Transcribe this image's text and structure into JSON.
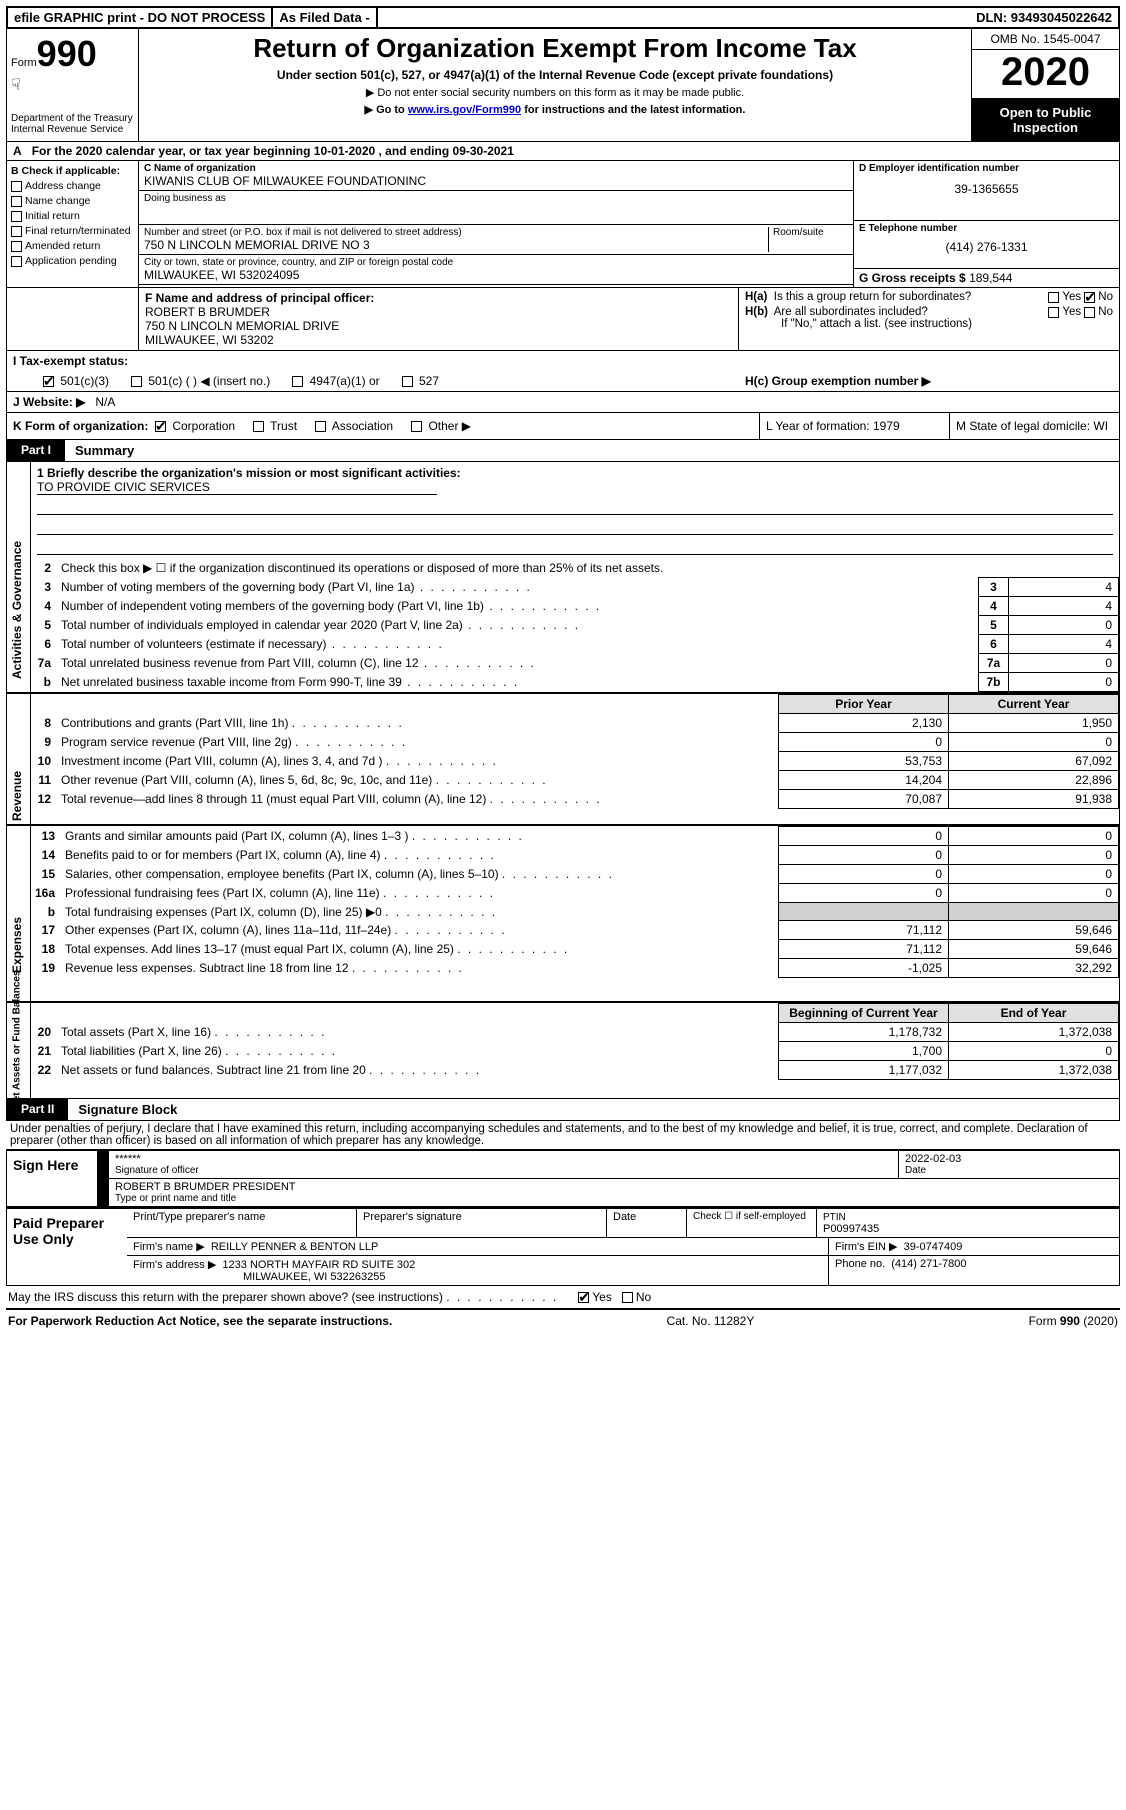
{
  "topbar": {
    "efile": "efile GRAPHIC print - DO NOT PROCESS",
    "asfiled": "As Filed Data -",
    "dln_label": "DLN:",
    "dln": "93493045022642"
  },
  "header": {
    "form_word": "Form",
    "form_no": "990",
    "dept": "Department of the Treasury\nInternal Revenue Service",
    "title": "Return of Organization Exempt From Income Tax",
    "sub": "Under section 501(c), 527, or 4947(a)(1) of the Internal Revenue Code (except private foundations)",
    "note1": "▶ Do not enter social security numbers on this form as it may be made public.",
    "note2_pre": "▶ Go to ",
    "note2_link": "www.irs.gov/Form990",
    "note2_post": " for instructions and the latest information.",
    "omb": "OMB No. 1545-0047",
    "year": "2020",
    "inspect": "Open to Public Inspection"
  },
  "rowA": {
    "label": "A",
    "text": "For the 2020 calendar year, or tax year beginning 10-01-2020   , and ending 09-30-2021"
  },
  "colB": {
    "hdr": "B Check if applicable:",
    "items": [
      "Address change",
      "Name change",
      "Initial return",
      "Final return/terminated",
      "Amended return",
      "Application pending"
    ]
  },
  "colC": {
    "c_label": "C Name of organization",
    "c_name": "KIWANIS CLUB OF MILWAUKEE FOUNDATIONINC",
    "dba_label": "Doing business as",
    "addr_label": "Number and street (or P.O. box if mail is not delivered to street address)",
    "room_label": "Room/suite",
    "addr": "750 N LINCOLN MEMORIAL DRIVE NO 3",
    "city_label": "City or town, state or province, country, and ZIP or foreign postal code",
    "city": "MILWAUKEE, WI  532024095"
  },
  "colD": {
    "d_label": "D Employer identification number",
    "ein": "39-1365655",
    "e_label": "E Telephone number",
    "phone": "(414) 276-1331",
    "g_label": "G Gross receipts $",
    "g_val": "189,544"
  },
  "rowF": {
    "f_label": "F  Name and address of principal officer:",
    "f_name": "ROBERT B BRUMDER",
    "f_addr1": "750 N LINCOLN MEMORIAL DRIVE",
    "f_addr2": "MILWAUKEE, WI  53202"
  },
  "colH": {
    "ha": "H(a)  Is this a group return for subordinates?",
    "hb": "H(b)  Are all subordinates included?",
    "hb_note": "If \"No,\" attach a list. (see instructions)",
    "hc": "H(c)  Group exemption number ▶",
    "yes": "Yes",
    "no": "No"
  },
  "rowI": {
    "label": "I   Tax-exempt status:",
    "opts": [
      "501(c)(3)",
      "501(c) (  ) ◀ (insert no.)",
      "4947(a)(1) or",
      "527"
    ]
  },
  "rowJ": {
    "label": "J   Website: ▶",
    "val": "N/A"
  },
  "rowK": {
    "label": "K Form of organization:",
    "opts": [
      "Corporation",
      "Trust",
      "Association",
      "Other ▶"
    ],
    "L": "L Year of formation: 1979",
    "M": "M State of legal domicile: WI"
  },
  "partI": {
    "tab": "Part I",
    "title": "Summary",
    "sections": {
      "ag": "Activities & Governance",
      "rev": "Revenue",
      "exp": "Expenses",
      "na": "Net Assets or Fund Balances"
    },
    "l1_label": "1 Briefly describe the organization's mission or most significant activities:",
    "l1_val": "TO PROVIDE CIVIC SERVICES",
    "l2": "Check this box ▶ ☐ if the organization discontinued its operations or disposed of more than 25% of its net assets.",
    "lines_ag": [
      {
        "n": "3",
        "t": "Number of voting members of the governing body (Part VI, line 1a)",
        "box": "3",
        "v": "4"
      },
      {
        "n": "4",
        "t": "Number of independent voting members of the governing body (Part VI, line 1b)",
        "box": "4",
        "v": "4"
      },
      {
        "n": "5",
        "t": "Total number of individuals employed in calendar year 2020 (Part V, line 2a)",
        "box": "5",
        "v": "0"
      },
      {
        "n": "6",
        "t": "Total number of volunteers (estimate if necessary)",
        "box": "6",
        "v": "4"
      },
      {
        "n": "7a",
        "t": "Total unrelated business revenue from Part VIII, column (C), line 12",
        "box": "7a",
        "v": "0"
      },
      {
        "n": "b",
        "t": "Net unrelated business taxable income from Form 990-T, line 39",
        "box": "7b",
        "v": "0"
      }
    ],
    "col_hdr_prior": "Prior Year",
    "col_hdr_current": "Current Year",
    "lines_rev": [
      {
        "n": "8",
        "t": "Contributions and grants (Part VIII, line 1h)",
        "p": "2,130",
        "c": "1,950"
      },
      {
        "n": "9",
        "t": "Program service revenue (Part VIII, line 2g)",
        "p": "0",
        "c": "0"
      },
      {
        "n": "10",
        "t": "Investment income (Part VIII, column (A), lines 3, 4, and 7d )",
        "p": "53,753",
        "c": "67,092"
      },
      {
        "n": "11",
        "t": "Other revenue (Part VIII, column (A), lines 5, 6d, 8c, 9c, 10c, and 11e)",
        "p": "14,204",
        "c": "22,896"
      },
      {
        "n": "12",
        "t": "Total revenue—add lines 8 through 11 (must equal Part VIII, column (A), line 12)",
        "p": "70,087",
        "c": "91,938"
      }
    ],
    "lines_exp": [
      {
        "n": "13",
        "t": "Grants and similar amounts paid (Part IX, column (A), lines 1–3 )",
        "p": "0",
        "c": "0"
      },
      {
        "n": "14",
        "t": "Benefits paid to or for members (Part IX, column (A), line 4)",
        "p": "0",
        "c": "0"
      },
      {
        "n": "15",
        "t": "Salaries, other compensation, employee benefits (Part IX, column (A), lines 5–10)",
        "p": "0",
        "c": "0"
      },
      {
        "n": "16a",
        "t": "Professional fundraising fees (Part IX, column (A), line 11e)",
        "p": "0",
        "c": "0"
      },
      {
        "n": "b",
        "t": "Total fundraising expenses (Part IX, column (D), line 25) ▶0",
        "p": "",
        "c": ""
      },
      {
        "n": "17",
        "t": "Other expenses (Part IX, column (A), lines 11a–11d, 11f–24e)",
        "p": "71,112",
        "c": "59,646"
      },
      {
        "n": "18",
        "t": "Total expenses. Add lines 13–17 (must equal Part IX, column (A), line 25)",
        "p": "71,112",
        "c": "59,646"
      },
      {
        "n": "19",
        "t": "Revenue less expenses. Subtract line 18 from line 12",
        "p": "-1,025",
        "c": "32,292"
      }
    ],
    "col_hdr_begin": "Beginning of Current Year",
    "col_hdr_end": "End of Year",
    "lines_na": [
      {
        "n": "20",
        "t": "Total assets (Part X, line 16)",
        "p": "1,178,732",
        "c": "1,372,038"
      },
      {
        "n": "21",
        "t": "Total liabilities (Part X, line 26)",
        "p": "1,700",
        "c": "0"
      },
      {
        "n": "22",
        "t": "Net assets or fund balances. Subtract line 21 from line 20",
        "p": "1,177,032",
        "c": "1,372,038"
      }
    ]
  },
  "partII": {
    "tab": "Part II",
    "title": "Signature Block",
    "decl": "Under penalties of perjury, I declare that I have examined this return, including accompanying schedules and statements, and to the best of my knowledge and belief, it is true, correct, and complete. Declaration of preparer (other than officer) is based on all information of which preparer has any knowledge."
  },
  "sign": {
    "sign_here": "Sign Here",
    "stars": "******",
    "sig_label": "Signature of officer",
    "date": "2022-02-03",
    "date_label": "Date",
    "officer": "ROBERT B BRUMDER  PRESIDENT",
    "officer_label": "Type or print name and title"
  },
  "paid": {
    "label": "Paid Preparer Use Only",
    "c1": "Print/Type preparer's name",
    "c2": "Preparer's signature",
    "c3": "Date",
    "c4a": "Check ☐ if self-employed",
    "c4b_label": "PTIN",
    "ptin": "P00997435",
    "firm_label": "Firm's name   ▶",
    "firm": "REILLY PENNER & BENTON LLP",
    "ein_label": "Firm's EIN ▶",
    "ein": "39-0747409",
    "addr_label": "Firm's address ▶",
    "addr1": "1233 NORTH MAYFAIR RD SUITE 302",
    "addr2": "MILWAUKEE, WI  532263255",
    "phone_label": "Phone no.",
    "phone": "(414) 271-7800"
  },
  "discuss": {
    "q": "May the IRS discuss this return with the preparer shown above? (see instructions)",
    "yes": "Yes",
    "no": "No"
  },
  "footer": {
    "left": "For Paperwork Reduction Act Notice, see the separate instructions.",
    "mid": "Cat. No. 11282Y",
    "right_pre": "Form ",
    "right_form": "990",
    "right_post": " (2020)"
  },
  "colors": {
    "ink": "#000000",
    "bg": "#ffffff",
    "shade": "#d0d0d0",
    "link": "#0000cc"
  }
}
